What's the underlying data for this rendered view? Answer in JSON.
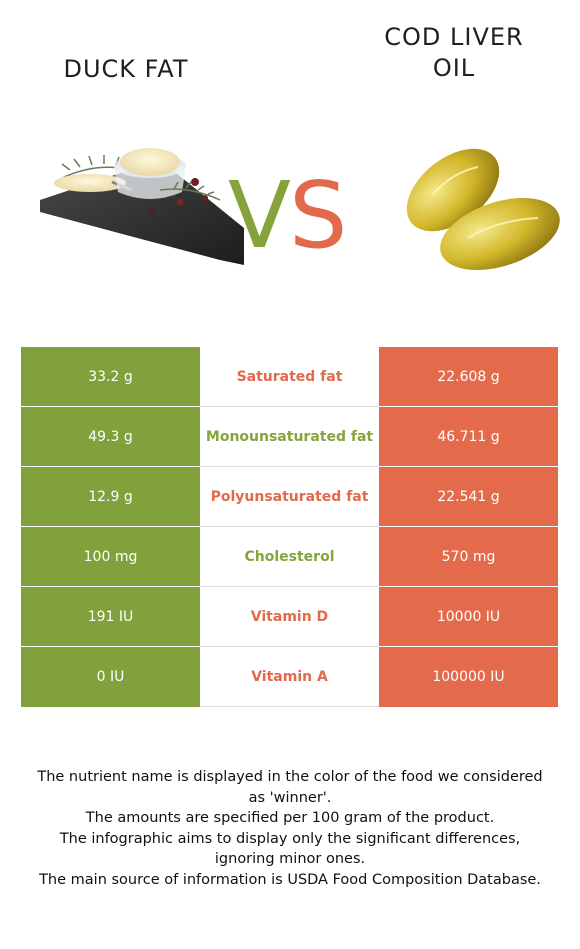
{
  "header": {
    "left_title": "DUCK FAT",
    "right_title_line1": "COD LIVER",
    "right_title_line2": "OIL",
    "vs_v": "V",
    "vs_s": "S"
  },
  "colors": {
    "left_food": "#80a13b",
    "right_food": "#e36b4b"
  },
  "images": {
    "left": "duck-fat-photo",
    "right": "cod-liver-oil-capsules-photo"
  },
  "rows": [
    {
      "left": "33.2 g",
      "nutrient": "Saturated fat",
      "right": "22.608 g",
      "winner": "right"
    },
    {
      "left": "49.3 g",
      "nutrient": "Monounsaturated fat",
      "right": "46.711 g",
      "winner": "left"
    },
    {
      "left": "12.9 g",
      "nutrient": "Polyunsaturated fat",
      "right": "22.541 g",
      "winner": "right"
    },
    {
      "left": "100 mg",
      "nutrient": "Cholesterol",
      "right": "570 mg",
      "winner": "left"
    },
    {
      "left": "191 IU",
      "nutrient": "Vitamin D",
      "right": "10000 IU",
      "winner": "right"
    },
    {
      "left": "0 IU",
      "nutrient": "Vitamin A",
      "right": "100000 IU",
      "winner": "right"
    }
  ],
  "notes": [
    "The nutrient name is displayed in the color of the food we considered as 'winner'.",
    "The amounts are specified per 100 gram of the product.",
    "The infographic aims to display only the significant differences, ignoring minor ones.",
    "The main source of information is USDA Food Composition Database."
  ]
}
